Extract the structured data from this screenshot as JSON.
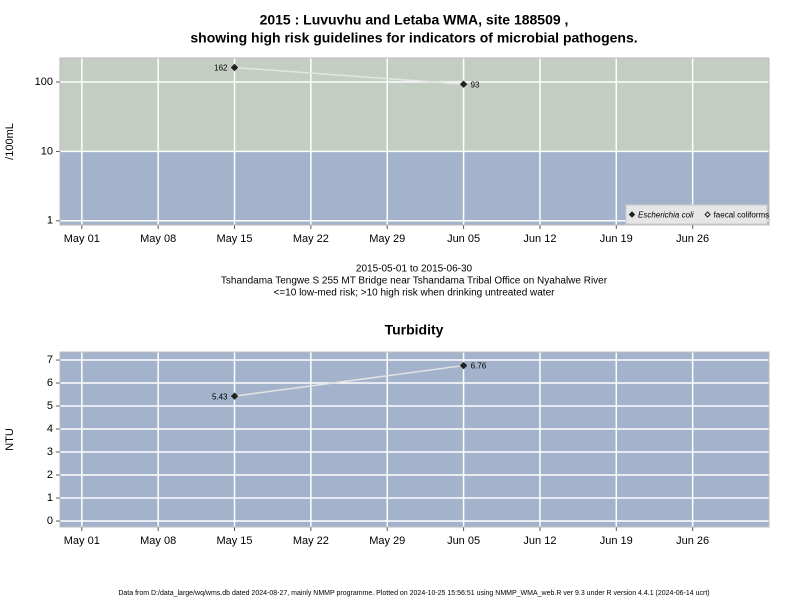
{
  "chart_data": [
    {
      "type": "line",
      "title": [
        "2015 : Luvuvhu and Letaba WMA, site 188509 ,",
        "showing high risk guidelines for indicators of microbial pathogens."
      ],
      "ylabel": "/100mL",
      "log_y": true,
      "threshold": 10,
      "band_colors": [
        "#c3cdc2",
        "#a3b3cb"
      ],
      "grid": true,
      "x": [
        "2015-05-15",
        "2015-06-05"
      ],
      "xlim": [
        "2015-04-29",
        "2015-07-03"
      ],
      "xticks": [
        {
          "value": "2015-05-01",
          "label": "May 01"
        },
        {
          "value": "2015-05-08",
          "label": "May 08"
        },
        {
          "value": "2015-05-15",
          "label": "May 15"
        },
        {
          "value": "2015-05-22",
          "label": "May 22"
        },
        {
          "value": "2015-05-29",
          "label": "May 29"
        },
        {
          "value": "2015-06-05",
          "label": "Jun 05"
        },
        {
          "value": "2015-06-12",
          "label": "Jun 12"
        },
        {
          "value": "2015-06-19",
          "label": "Jun 19"
        },
        {
          "value": "2015-06-26",
          "label": "Jun 26"
        }
      ],
      "ylim": [
        0.87,
        222
      ],
      "yticks": [
        1,
        10,
        100
      ],
      "line_color": "#e4e4e4",
      "legend": "bottom-right",
      "series": [
        {
          "name": "Escherichia coli",
          "color": "#222222",
          "marker": "filled",
          "values": [
            162,
            93
          ]
        },
        {
          "name": "faecal coliforms",
          "color": "#222222",
          "marker": "open",
          "values": [
            null,
            null
          ]
        }
      ],
      "notes": [
        "2015-05-01 to 2015-06-30",
        "Tshandama Tengwe S 255 MT Bridge near Tshandama Tribal Office on Nyahalwe River",
        "<=10 low-med risk; >10 high risk when drinking untreated water"
      ]
    },
    {
      "type": "line",
      "title": "Turbidity",
      "ylabel": "NTU",
      "background": "#a3b3cb",
      "grid": true,
      "x": [
        "2015-05-15",
        "2015-06-05"
      ],
      "xlim": [
        "2015-04-29",
        "2015-07-03"
      ],
      "xticks": [
        {
          "value": "2015-05-01",
          "label": "May 01"
        },
        {
          "value": "2015-05-08",
          "label": "May 08"
        },
        {
          "value": "2015-05-15",
          "label": "May 15"
        },
        {
          "value": "2015-05-22",
          "label": "May 22"
        },
        {
          "value": "2015-05-29",
          "label": "May 29"
        },
        {
          "value": "2015-06-05",
          "label": "Jun 05"
        },
        {
          "value": "2015-06-12",
          "label": "Jun 12"
        },
        {
          "value": "2015-06-19",
          "label": "Jun 19"
        },
        {
          "value": "2015-06-26",
          "label": "Jun 26"
        }
      ],
      "ylim": [
        -0.26,
        7.35
      ],
      "yticks": [
        0,
        1,
        2,
        3,
        4,
        5,
        6,
        7
      ],
      "line_color": "#e4e4e4",
      "series": [
        {
          "color": "#222222",
          "marker": "filled",
          "values": [
            5.43,
            6.76
          ]
        }
      ]
    }
  ],
  "footer": "Data from D:/data_large/wq/wms.db dated 2024-08-27, mainly NMMP programme. Plotted on 2024-10-25 15:56:51 using NMMP_WMA_web.R ver 9.3 under R version 4.4.1 (2024-06-14 ucrt)"
}
